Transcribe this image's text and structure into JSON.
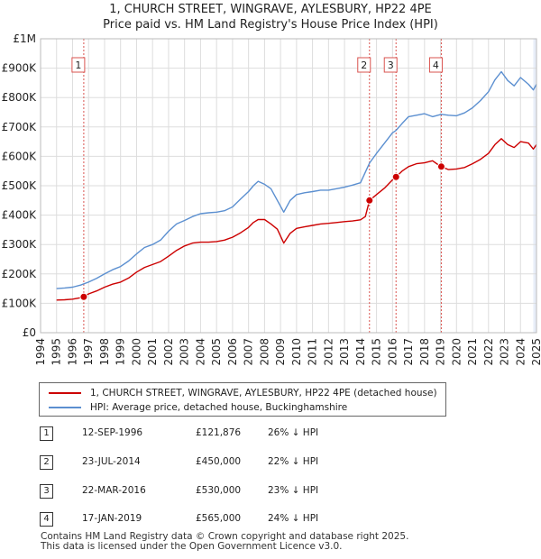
{
  "title": {
    "line1": "1, CHURCH STREET, WINGRAVE, AYLESBURY, HP22 4PE",
    "line2": "Price paid vs. HM Land Registry's House Price Index (HPI)"
  },
  "colors": {
    "price_paid": "#cc0000",
    "hpi": "#5b8fd0",
    "grid": "#dddddd",
    "marker_line": "#d9534f",
    "shade": "#e8eef8"
  },
  "chart_data": {
    "type": "line",
    "title": "1, CHURCH STREET, WINGRAVE, AYLESBURY, HP22 4PE — Price paid vs. HM Land Registry's House Price Index (HPI)",
    "xlabel": "",
    "ylabel": "",
    "xlim": [
      1994,
      2025
    ],
    "ylim": [
      0,
      1000000
    ],
    "y_ticks": [
      {
        "value": 0,
        "label": "£0"
      },
      {
        "value": 100000,
        "label": "£100K"
      },
      {
        "value": 200000,
        "label": "£200K"
      },
      {
        "value": 300000,
        "label": "£300K"
      },
      {
        "value": 400000,
        "label": "£400K"
      },
      {
        "value": 500000,
        "label": "£500K"
      },
      {
        "value": 600000,
        "label": "£600K"
      },
      {
        "value": 700000,
        "label": "£700K"
      },
      {
        "value": 800000,
        "label": "£800K"
      },
      {
        "value": 900000,
        "label": "£900K"
      },
      {
        "value": 1000000,
        "label": "£1M"
      }
    ],
    "x_ticks": [
      "1994",
      "1995",
      "1996",
      "1997",
      "1998",
      "1999",
      "2000",
      "2001",
      "2002",
      "2003",
      "2004",
      "2005",
      "2006",
      "2007",
      "2008",
      "2009",
      "2010",
      "2011",
      "2012",
      "2013",
      "2014",
      "2015",
      "2016",
      "2017",
      "2018",
      "2019",
      "2020",
      "2021",
      "2022",
      "2023",
      "2024",
      "2025"
    ],
    "grid": true,
    "series": [
      {
        "name": "1, CHURCH STREET, WINGRAVE, AYLESBURY, HP22 4PE (detached house)",
        "color": "#cc0000",
        "x": [
          1995.0,
          1995.5,
          1996.0,
          1996.5,
          1996.7,
          1997.0,
          1997.5,
          1998.0,
          1998.5,
          1999.0,
          1999.5,
          2000.0,
          2000.5,
          2001.0,
          2001.5,
          2002.0,
          2002.5,
          2003.0,
          2003.5,
          2004.0,
          2004.5,
          2005.0,
          2005.5,
          2006.0,
          2006.5,
          2007.0,
          2007.3,
          2007.6,
          2008.0,
          2008.4,
          2008.8,
          2009.2,
          2009.6,
          2010.0,
          2010.5,
          2011.0,
          2011.5,
          2012.0,
          2012.5,
          2013.0,
          2013.5,
          2014.0,
          2014.3,
          2014.56,
          2015.0,
          2015.5,
          2016.0,
          2016.22,
          2016.6,
          2017.0,
          2017.5,
          2018.0,
          2018.5,
          2019.0,
          2019.05,
          2019.5,
          2020.0,
          2020.5,
          2021.0,
          2021.5,
          2022.0,
          2022.4,
          2022.8,
          2023.2,
          2023.6,
          2024.0,
          2024.5,
          2024.8,
          2025.0
        ],
        "values": [
          111000,
          112000,
          114000,
          119000,
          121876,
          132000,
          142000,
          155000,
          165000,
          172000,
          186000,
          206000,
          222000,
          232000,
          242000,
          260000,
          280000,
          295000,
          305000,
          308000,
          308000,
          310000,
          315000,
          325000,
          340000,
          358000,
          375000,
          385000,
          385000,
          370000,
          352000,
          305000,
          338000,
          355000,
          360000,
          365000,
          370000,
          372000,
          375000,
          378000,
          380000,
          384000,
          395000,
          450000,
          470000,
          492000,
          520000,
          530000,
          550000,
          565000,
          575000,
          578000,
          585000,
          566000,
          565000,
          555000,
          557000,
          562000,
          575000,
          590000,
          610000,
          640000,
          660000,
          640000,
          630000,
          650000,
          645000,
          625000,
          640000
        ]
      },
      {
        "name": "HPI: Average price, detached house, Buckinghamshire",
        "color": "#5b8fd0",
        "x": [
          1995.0,
          1995.5,
          1996.0,
          1996.5,
          1997.0,
          1997.5,
          1998.0,
          1998.5,
          1999.0,
          1999.5,
          2000.0,
          2000.5,
          2001.0,
          2001.5,
          2002.0,
          2002.5,
          2003.0,
          2003.5,
          2004.0,
          2004.5,
          2005.0,
          2005.5,
          2006.0,
          2006.5,
          2007.0,
          2007.3,
          2007.6,
          2008.0,
          2008.4,
          2008.8,
          2009.2,
          2009.6,
          2010.0,
          2010.5,
          2011.0,
          2011.5,
          2012.0,
          2012.5,
          2013.0,
          2013.5,
          2014.0,
          2014.56,
          2015.0,
          2015.5,
          2016.0,
          2016.22,
          2016.6,
          2017.0,
          2017.5,
          2018.0,
          2018.5,
          2019.0,
          2019.05,
          2019.5,
          2020.0,
          2020.5,
          2021.0,
          2021.5,
          2022.0,
          2022.4,
          2022.8,
          2023.2,
          2023.6,
          2024.0,
          2024.5,
          2024.8,
          2025.0
        ],
        "values": [
          150000,
          152000,
          155000,
          162000,
          172000,
          185000,
          200000,
          214000,
          225000,
          244000,
          268000,
          290000,
          300000,
          315000,
          345000,
          370000,
          382000,
          395000,
          405000,
          408000,
          410000,
          415000,
          428000,
          455000,
          480000,
          500000,
          515000,
          505000,
          490000,
          450000,
          410000,
          450000,
          470000,
          476000,
          480000,
          485000,
          485000,
          490000,
          495000,
          502000,
          510000,
          577000,
          610000,
          645000,
          680000,
          688000,
          712000,
          735000,
          740000,
          745000,
          735000,
          742000,
          743000,
          740000,
          738000,
          748000,
          765000,
          790000,
          820000,
          860000,
          888000,
          858000,
          840000,
          868000,
          845000,
          826000,
          845000
        ]
      }
    ],
    "sales": [
      {
        "id": "1",
        "x": 1996.7,
        "price": 121876
      },
      {
        "id": "2",
        "x": 2014.56,
        "price": 450000
      },
      {
        "id": "3",
        "x": 2016.22,
        "price": 530000
      },
      {
        "id": "4",
        "x": 2019.05,
        "price": 565000
      }
    ],
    "legend": {
      "placement": "bottom"
    }
  },
  "legend": {
    "price_paid_label": "1, CHURCH STREET, WINGRAVE, AYLESBURY, HP22 4PE (detached house)",
    "hpi_label": "HPI: Average price, detached house, Buckinghamshire"
  },
  "transactions": [
    {
      "num": "1",
      "date": "12-SEP-1996",
      "price": "£121,876",
      "hpi": "26% ↓ HPI"
    },
    {
      "num": "2",
      "date": "23-JUL-2014",
      "price": "£450,000",
      "hpi": "22% ↓ HPI"
    },
    {
      "num": "3",
      "date": "22-MAR-2016",
      "price": "£530,000",
      "hpi": "23% ↓ HPI"
    },
    {
      "num": "4",
      "date": "17-JAN-2019",
      "price": "£565,000",
      "hpi": "24% ↓ HPI"
    }
  ],
  "footer": {
    "line1": "Contains HM Land Registry data © Crown copyright and database right 2025.",
    "line2": "This data is licensed under the Open Government Licence v3.0."
  }
}
